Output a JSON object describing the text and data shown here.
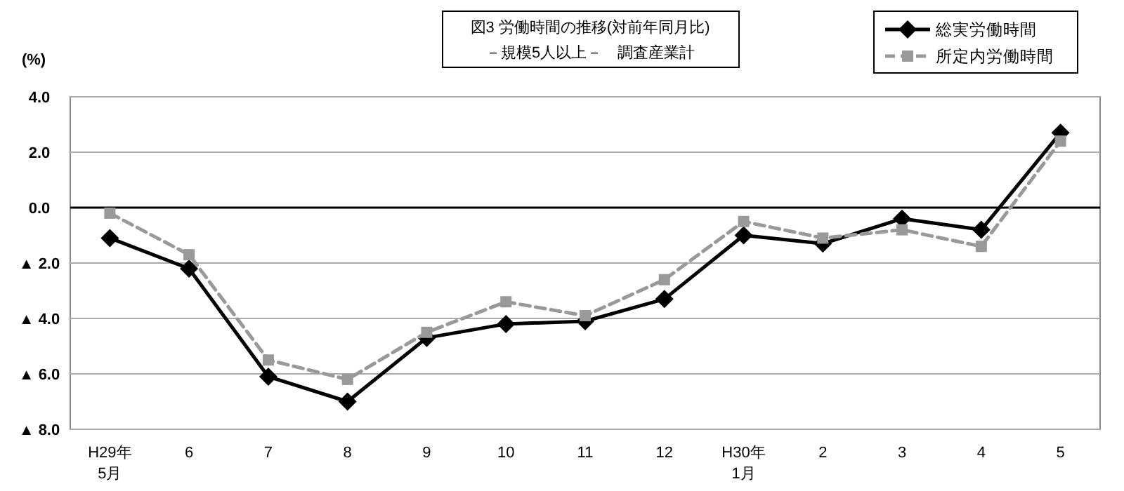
{
  "chart_data": {
    "type": "line",
    "title": "図3 労働時間の推移(対前年同月比)",
    "subtitle": "－規模5人以上－　調査産業計",
    "ylabel": "(%)",
    "categories": [
      "H29年\n5月",
      "6",
      "7",
      "8",
      "9",
      "10",
      "11",
      "12",
      "H30年\n1月",
      "2",
      "3",
      "4",
      "5"
    ],
    "series": [
      {
        "name": "総実労働時間",
        "color": "#000000",
        "marker": "diamond",
        "line_style": "solid",
        "values": [
          -1.1,
          -2.2,
          -6.1,
          -7.0,
          -4.7,
          -4.2,
          -4.1,
          -3.3,
          -1.0,
          -1.3,
          -0.4,
          -0.8,
          2.7
        ]
      },
      {
        "name": "所定内労働時間",
        "color": "#999999",
        "marker": "square",
        "line_style": "dashed",
        "values": [
          -0.2,
          -1.7,
          -5.5,
          -6.2,
          -4.5,
          -3.4,
          -3.9,
          -2.6,
          -0.5,
          -1.1,
          -0.8,
          -1.4,
          2.4
        ]
      }
    ],
    "ylim": [
      -8,
      4
    ],
    "yticks": [
      {
        "value": 4,
        "label": "4.0"
      },
      {
        "value": 2,
        "label": "2.0"
      },
      {
        "value": 0,
        "label": "0.0"
      },
      {
        "value": -2,
        "label": "▲ 2.0"
      },
      {
        "value": -4,
        "label": "▲ 4.0"
      },
      {
        "value": -6,
        "label": "▲ 6.0"
      },
      {
        "value": -8,
        "label": "▲ 8.0"
      }
    ],
    "ref_lines": [
      {
        "axis": "y",
        "value": 0,
        "color": "#000000"
      }
    ],
    "grid": "y",
    "legend": "top right"
  }
}
